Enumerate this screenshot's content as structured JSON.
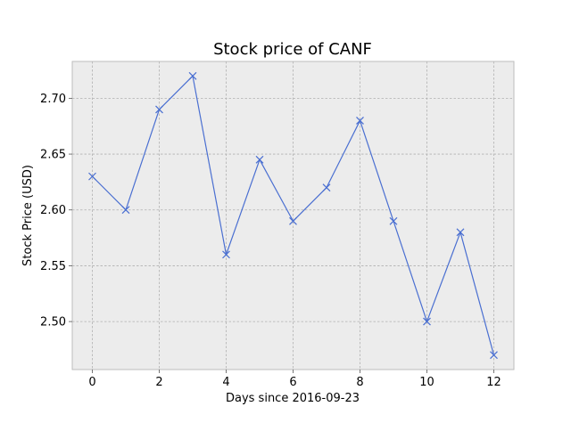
{
  "chart_data": {
    "type": "line",
    "title": "Stock price of CANF",
    "xlabel": "Days since 2016-09-23",
    "ylabel": "Stock Price (USD)",
    "x": [
      0,
      1,
      2,
      3,
      4,
      5,
      6,
      7,
      8,
      9,
      10,
      11,
      12
    ],
    "series": [
      {
        "values": [
          2.63,
          2.6,
          2.69,
          2.72,
          2.56,
          2.645,
          2.59,
          2.62,
          2.68,
          2.59,
          2.5,
          2.58,
          2.47
        ]
      }
    ],
    "xlim": [
      -0.6,
      12.6
    ],
    "ylim": [
      2.457,
      2.733
    ],
    "xticks": [
      0,
      2,
      4,
      6,
      8,
      10,
      12
    ],
    "xtick_labels": [
      "0",
      "2",
      "4",
      "6",
      "8",
      "10",
      "12"
    ],
    "yticks": [
      2.5,
      2.55,
      2.6,
      2.65,
      2.7
    ],
    "ytick_labels": [
      "2.50",
      "2.55",
      "2.60",
      "2.65",
      "2.70"
    ],
    "grid": true,
    "marker": "x",
    "colors": {
      "line": "#4a6fd1",
      "plot_background": "#ececec",
      "grid": "#b0b0b0",
      "frame": "#bcbcbc"
    }
  }
}
